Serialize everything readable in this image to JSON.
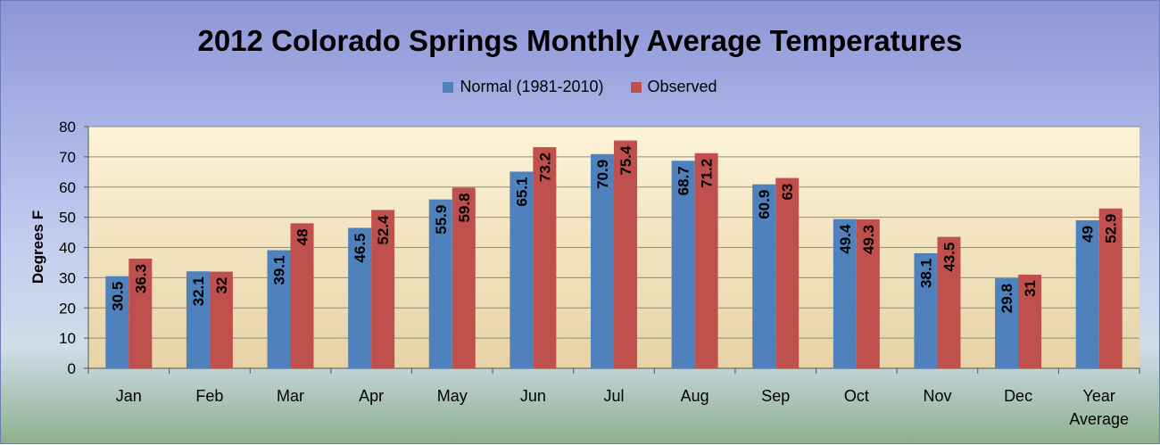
{
  "chart_data": {
    "type": "bar",
    "title": "2012 Colorado Springs Monthly Average Temperatures",
    "xlabel": "",
    "ylabel": "Degrees  F",
    "ylim": [
      0,
      80
    ],
    "yticks": [
      0,
      10,
      20,
      30,
      40,
      50,
      60,
      70,
      80
    ],
    "grid": true,
    "legend_position": "top",
    "categories": [
      "Jan",
      "Feb",
      "Mar",
      "Apr",
      "May",
      "Jun",
      "Jul",
      "Aug",
      "Sep",
      "Oct",
      "Nov",
      "Dec",
      "Year Average"
    ],
    "series": [
      {
        "name": "Normal (1981-2010)",
        "color": "#4f81bd",
        "values": [
          30.5,
          32.1,
          39.1,
          46.5,
          55.9,
          65.1,
          70.9,
          68.7,
          60.9,
          49.4,
          38.1,
          29.8,
          49
        ]
      },
      {
        "name": "Observed",
        "color": "#c0504d",
        "values": [
          36.3,
          32,
          48,
          52.4,
          59.8,
          73.2,
          75.4,
          71.2,
          63,
          49.3,
          43.5,
          31,
          52.9
        ]
      }
    ]
  }
}
